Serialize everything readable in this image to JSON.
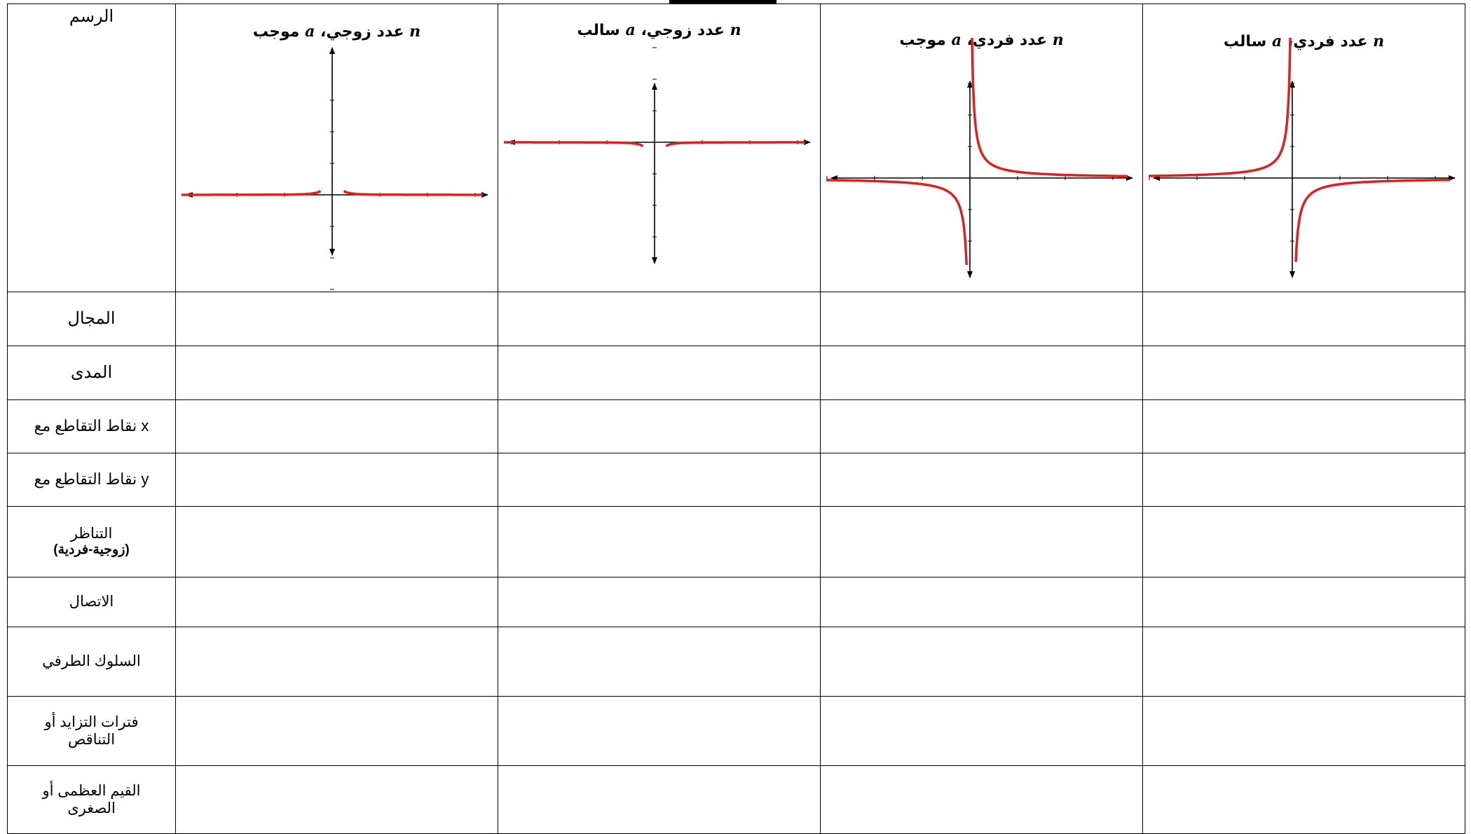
{
  "table": {
    "graph_label": "الرسم",
    "rows": [
      {
        "label": "المجال",
        "sub": ""
      },
      {
        "label": "المدى",
        "sub": ""
      },
      {
        "label": "نقاط التقاطع مع x",
        "sub": ""
      },
      {
        "label": "نقاط التقاطع مع y",
        "sub": ""
      },
      {
        "label": "التناظر",
        "sub": "(زوجية-فردية)"
      },
      {
        "label": "الاتصال",
        "sub": ""
      },
      {
        "label": "السلوك الطرفي",
        "sub": ""
      },
      {
        "label": "فترات التزايد أو التناقص",
        "sub": ""
      },
      {
        "label": "القيم العظمى أو الصغرى",
        "sub": ""
      }
    ],
    "columns": [
      {
        "var_n": "n",
        "n_text": "عدد زوجي،",
        "var_a": "a",
        "a_text": "موجب"
      },
      {
        "var_n": "n",
        "n_text": "عدد زوجي،",
        "var_a": "a",
        "a_text": "سالب"
      },
      {
        "var_n": "n",
        "n_text": "عدد فردي،",
        "var_a": "a",
        "a_text": "موجب"
      },
      {
        "var_n": "n",
        "n_text": "عدد فردي،",
        "var_a": "a",
        "a_text": "سالب"
      }
    ]
  },
  "colors": {
    "curve": "#e0201c",
    "axis": "#000000",
    "border": "#000000"
  },
  "icons": [
    "arrow-head-icon"
  ]
}
